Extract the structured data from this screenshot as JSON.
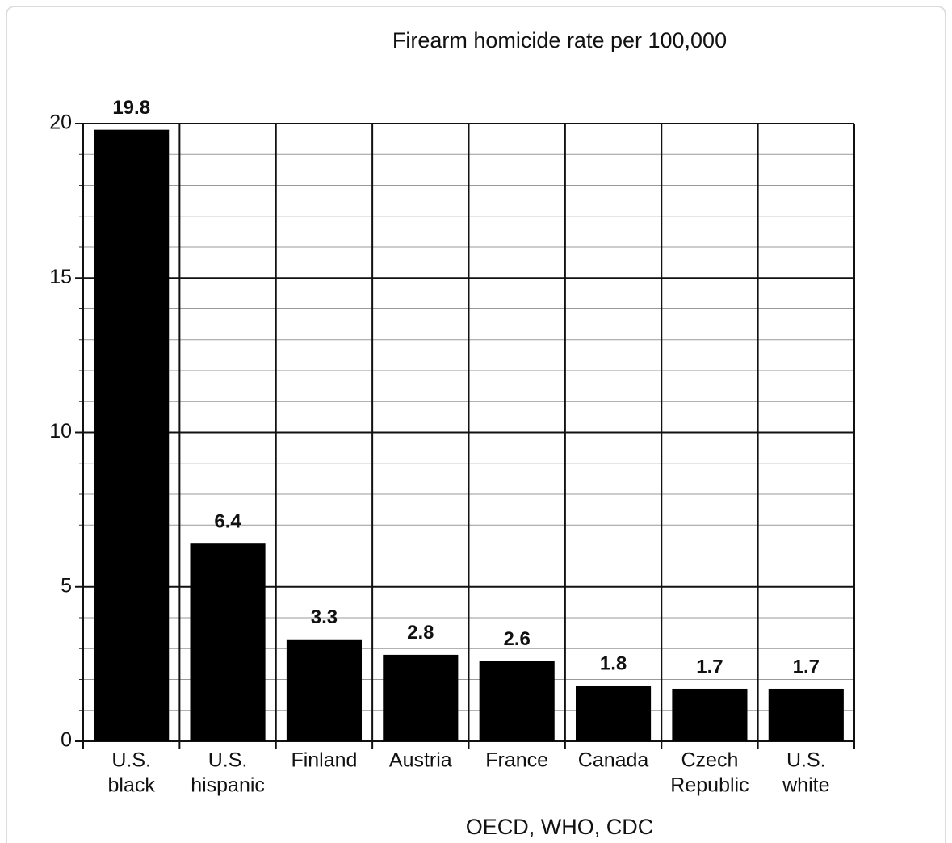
{
  "chart_data": {
    "type": "bar",
    "title": "Firearm homicide rate per 100,000",
    "categories": [
      [
        "U.S.",
        "black"
      ],
      [
        "U.S.",
        "hispanic"
      ],
      [
        "Finland"
      ],
      [
        "Austria"
      ],
      [
        "France"
      ],
      [
        "Canada"
      ],
      [
        "Czech",
        "Republic"
      ],
      [
        "U.S.",
        "white"
      ]
    ],
    "values": [
      19.8,
      6.4,
      3.3,
      2.8,
      2.6,
      1.8,
      1.7,
      1.7
    ],
    "color": "#000000",
    "ylim": [
      0,
      20
    ],
    "yticks": [
      0,
      5,
      10,
      15,
      20
    ],
    "minor_yticks": [
      1,
      2,
      3,
      4,
      6,
      7,
      8,
      9,
      11,
      12,
      13,
      14,
      16,
      17,
      18,
      19
    ],
    "grid": true,
    "source": "OECD, WHO, CDC"
  }
}
